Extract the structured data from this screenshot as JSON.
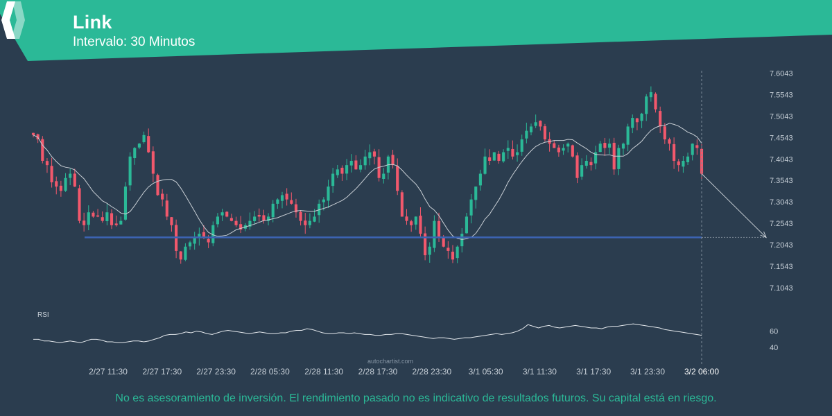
{
  "header": {
    "title": "Link",
    "subtitle": "Intervalo: 30 Minutos",
    "brand_color": "#2bb997"
  },
  "footer": {
    "disclaimer": "No es asesoramiento de inversión. El rendimiento pasado no es indicativo de resultados futuros. Su capital está en riesgo."
  },
  "watermark": "autochartist.com",
  "chart_data": {
    "type": "candlestick",
    "ylim": [
      7.08,
      7.61
    ],
    "yticks": [
      "7.6043",
      "7.5543",
      "7.5043",
      "7.4543",
      "7.4043",
      "7.3543",
      "7.3043",
      "7.2543",
      "7.2043",
      "7.1543",
      "7.1043"
    ],
    "xticks": [
      "2/27 11:30",
      "2/27 17:30",
      "2/27 23:30",
      "2/28 05:30",
      "2/28 11:30",
      "2/28 17:30",
      "2/28 23:30",
      "3/1 05:30",
      "3/1 11:30",
      "3/1 17:30",
      "3/1 23:30",
      "3/2 06:00"
    ],
    "support_level": 7.2215,
    "forecast_target": 7.2215,
    "colors": {
      "up": "#2bb997",
      "down": "#f2586c",
      "ma": "#c9cfd5",
      "support": "#3c64b4"
    },
    "closes": [
      7.46,
      7.45,
      7.4,
      7.39,
      7.35,
      7.34,
      7.33,
      7.36,
      7.37,
      7.34,
      7.26,
      7.25,
      7.28,
      7.27,
      7.27,
      7.26,
      7.28,
      7.25,
      7.25,
      7.26,
      7.34,
      7.41,
      7.43,
      7.44,
      7.46,
      7.42,
      7.37,
      7.32,
      7.31,
      7.27,
      7.25,
      7.19,
      7.17,
      7.2,
      7.21,
      7.22,
      7.23,
      7.22,
      7.21,
      7.25,
      7.27,
      7.28,
      7.27,
      7.26,
      7.25,
      7.24,
      7.25,
      7.26,
      7.27,
      7.27,
      7.26,
      7.27,
      7.3,
      7.31,
      7.32,
      7.31,
      7.3,
      7.28,
      7.26,
      7.25,
      7.26,
      7.27,
      7.3,
      7.31,
      7.34,
      7.37,
      7.38,
      7.37,
      7.39,
      7.4,
      7.38,
      7.39,
      7.41,
      7.42,
      7.41,
      7.36,
      7.37,
      7.41,
      7.39,
      7.33,
      7.27,
      7.26,
      7.25,
      7.27,
      7.23,
      7.18,
      7.2,
      7.26,
      7.22,
      7.2,
      7.19,
      7.17,
      7.2,
      7.23,
      7.27,
      7.31,
      7.34,
      7.37,
      7.41,
      7.4,
      7.42,
      7.4,
      7.42,
      7.43,
      7.41,
      7.42,
      7.45,
      7.47,
      7.48,
      7.49,
      7.48,
      7.45,
      7.44,
      7.43,
      7.42,
      7.43,
      7.44,
      7.41,
      7.36,
      7.39,
      7.4,
      7.39,
      7.42,
      7.44,
      7.43,
      7.44,
      7.38,
      7.43,
      7.44,
      7.48,
      7.5,
      7.49,
      7.51,
      7.55,
      7.56,
      7.52,
      7.48,
      7.45,
      7.44,
      7.4,
      7.39,
      7.4,
      7.41,
      7.44,
      7.43,
      7.37
    ],
    "rsi_label": "RSI",
    "rsi_ticks": [
      "60",
      "40"
    ],
    "rsi_ylim": [
      30,
      75
    ],
    "rsi": [
      50,
      50,
      48,
      48,
      47,
      46,
      47,
      48,
      47,
      46,
      48,
      50,
      50,
      49,
      47,
      47,
      46,
      46,
      47,
      48,
      48,
      47,
      48,
      50,
      52,
      55,
      56,
      56,
      57,
      59,
      58,
      60,
      59,
      57,
      56,
      58,
      60,
      61,
      60,
      59,
      58,
      57,
      58,
      59,
      58,
      57,
      57,
      58,
      58,
      60,
      61,
      61,
      63,
      62,
      60,
      58,
      57,
      57,
      58,
      58,
      57,
      58,
      57,
      56,
      56,
      55,
      55,
      56,
      56,
      57,
      57,
      56,
      55,
      54,
      53,
      52,
      51,
      52,
      52,
      51,
      50,
      51,
      52,
      52,
      53,
      54,
      55,
      56,
      57,
      56,
      57,
      58,
      60,
      63,
      68,
      66,
      64,
      66,
      67,
      65,
      64,
      65,
      66,
      67,
      66,
      65,
      64,
      64,
      63,
      65,
      66,
      66,
      67,
      68,
      69,
      68,
      67,
      66,
      65,
      64,
      62,
      61,
      60,
      59,
      58,
      57,
      56,
      55
    ]
  }
}
